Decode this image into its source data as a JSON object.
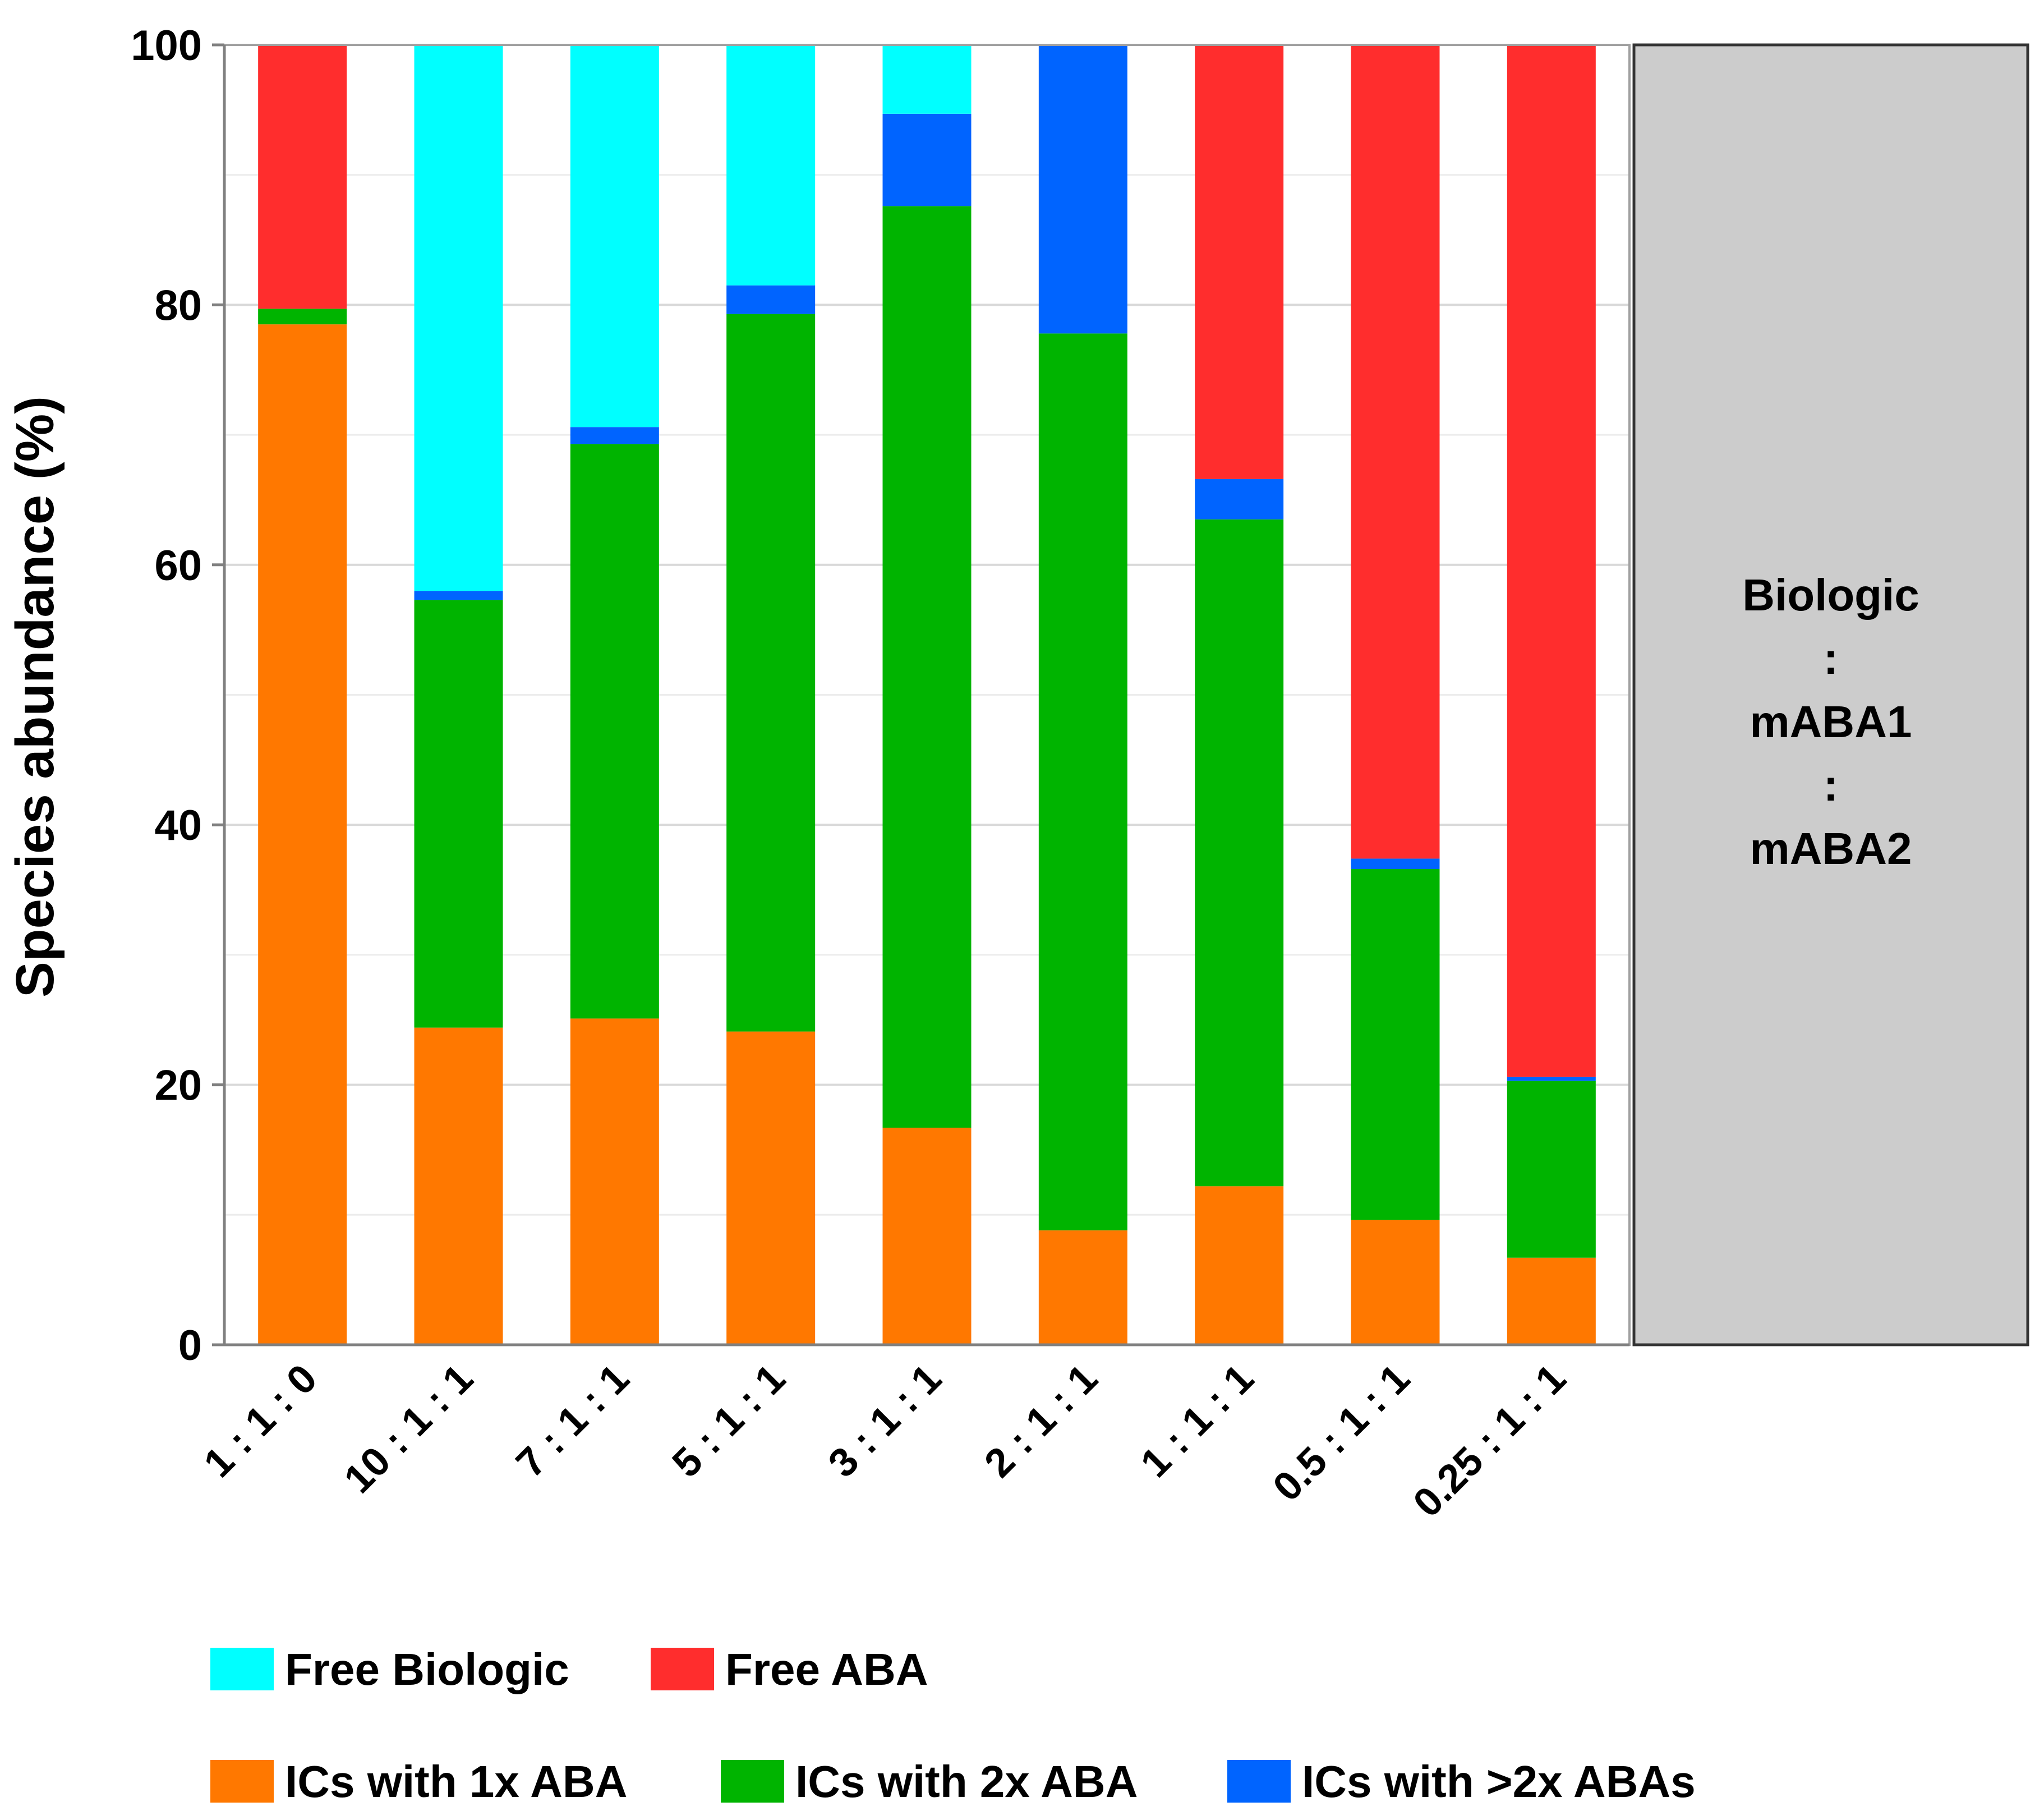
{
  "chart_data": {
    "type": "bar",
    "stacked": true,
    "title": "",
    "xlabel": "",
    "ylabel": "Species abundance (%)",
    "ylim": [
      0,
      100
    ],
    "yticks": [
      0,
      20,
      40,
      60,
      80,
      100
    ],
    "minor_gridlines": [
      10,
      30,
      50,
      70,
      90
    ],
    "grid": true,
    "legend_position": "bottom",
    "categories": [
      "1 : 1 : 0",
      "10 : 1 : 1",
      "7 : 1 : 1",
      "5 : 1 : 1",
      "3 : 1 : 1",
      "2 : 1 : 1",
      "1 : 1 : 1",
      "0.5 : 1 : 1",
      "0.25 : 1 : 1"
    ],
    "series": [
      {
        "name": "ICs with 1x ABA",
        "color": "#ff7800",
        "values": [
          78.5,
          24.4,
          25.1,
          24.1,
          16.7,
          8.8,
          12.2,
          9.6,
          6.7
        ]
      },
      {
        "name": "ICs with 2x ABA",
        "color": "#00b400",
        "values": [
          1.2,
          32.9,
          44.2,
          55.2,
          70.9,
          69.0,
          51.3,
          27.0,
          13.6
        ]
      },
      {
        "name": "ICs with >2x ABAs",
        "color": "#0064ff",
        "values": [
          0,
          0.7,
          1.3,
          2.2,
          7.1,
          22.2,
          3.1,
          0.8,
          0.3
        ]
      },
      {
        "name": "Free Biologic",
        "color": "#00ffff",
        "values": [
          0,
          42.0,
          29.4,
          18.5,
          5.3,
          0,
          0,
          0,
          0
        ]
      },
      {
        "name": "Free ABA",
        "color": "#ff2d2d",
        "values": [
          20.3,
          0,
          0,
          0,
          0,
          0,
          33.4,
          62.6,
          79.4
        ]
      }
    ],
    "legend_rows": [
      [
        "Free Biologic",
        "Free ABA"
      ],
      [
        "ICs with 1x ABA",
        "ICs with 2x ABA",
        "ICs with >2x ABAs"
      ]
    ],
    "side_panel": {
      "lines": [
        "Biologic",
        ":",
        "mABA1",
        ":",
        "mABA2"
      ],
      "fill": "#cccccc"
    },
    "colors": {
      "axis": "#808080",
      "major_grid": "#d9d9d9",
      "minor_grid": "#ececec",
      "frame": "#a0a0a0"
    }
  }
}
